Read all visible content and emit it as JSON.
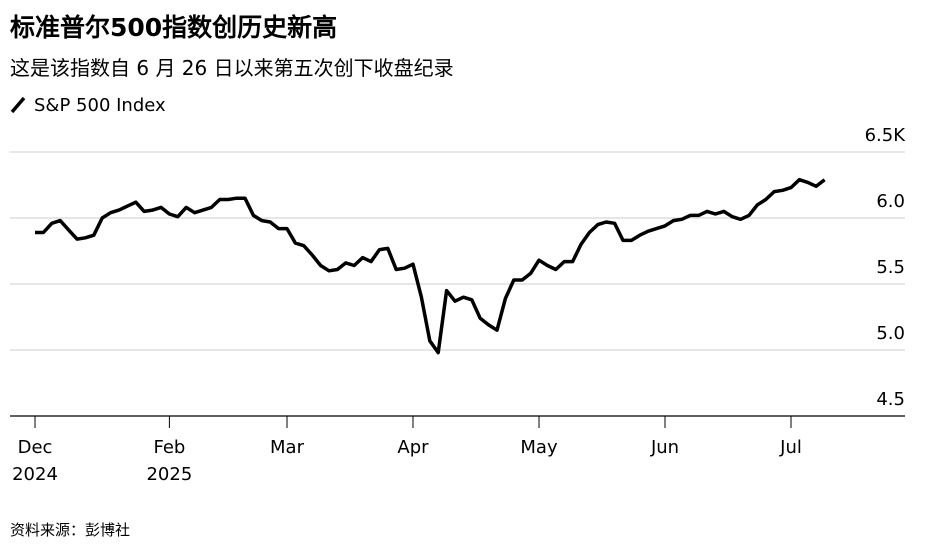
{
  "chart_data": {
    "type": "line",
    "title": "标准普尔500指数创历史新高",
    "subtitle": "这是该指数自 6 月 26 日以来第五次创下收盘纪录",
    "source": "资料来源：彭博社",
    "categories": [
      "Dec",
      null,
      null,
      null,
      null,
      null,
      null,
      null,
      null,
      null,
      null,
      null,
      null,
      null,
      null,
      null,
      "Feb",
      null,
      null,
      null,
      null,
      null,
      null,
      null,
      null,
      null,
      null,
      null,
      null,
      null,
      "Mar",
      null,
      null,
      null,
      null,
      null,
      null,
      null,
      null,
      null,
      null,
      null,
      null,
      null,
      null,
      "Apr",
      null,
      null,
      null,
      null,
      null,
      null,
      null,
      null,
      null,
      null,
      null,
      null,
      null,
      null,
      "May",
      null,
      null,
      null,
      null,
      null,
      null,
      null,
      null,
      null,
      null,
      null,
      null,
      null,
      null,
      "Jun",
      null,
      null,
      null,
      null,
      null,
      null,
      null,
      null,
      null,
      null,
      null,
      null,
      null,
      null,
      "Jul",
      null,
      null,
      null,
      null
    ],
    "category_years": [
      "2024",
      null,
      null,
      null,
      null,
      null,
      null,
      null,
      null,
      null,
      null,
      null,
      null,
      null,
      null,
      null,
      "2025",
      null,
      null,
      null,
      null,
      null,
      null,
      null,
      null,
      null,
      null,
      null,
      null,
      null,
      null,
      null,
      null,
      null,
      null,
      null,
      null,
      null,
      null,
      null,
      null,
      null,
      null,
      null,
      null,
      null,
      null,
      null,
      null,
      null,
      null,
      null,
      null,
      null,
      null,
      null,
      null,
      null,
      null,
      null,
      null,
      null,
      null,
      null,
      null,
      null,
      null,
      null,
      null,
      null,
      null,
      null,
      null,
      null,
      null,
      null,
      null,
      null,
      null,
      null,
      null,
      null,
      null,
      null,
      null,
      null,
      null,
      null,
      null,
      null,
      null,
      null,
      null,
      null,
      null
    ],
    "series": [
      {
        "name": "S&P 500 Index",
        "color": "#000000",
        "values": [
          5.89,
          5.89,
          5.96,
          5.98,
          5.91,
          5.84,
          5.85,
          5.87,
          6.0,
          6.04,
          6.06,
          6.09,
          6.12,
          6.05,
          6.06,
          6.08,
          6.03,
          6.01,
          6.08,
          6.04,
          6.06,
          6.08,
          6.14,
          6.14,
          6.15,
          6.15,
          6.02,
          5.98,
          5.97,
          5.92,
          5.92,
          5.81,
          5.79,
          5.72,
          5.64,
          5.6,
          5.61,
          5.66,
          5.64,
          5.7,
          5.67,
          5.76,
          5.77,
          5.61,
          5.62,
          5.65,
          5.4,
          5.07,
          4.98,
          5.45,
          5.37,
          5.4,
          5.38,
          5.24,
          5.19,
          5.15,
          5.39,
          5.53,
          5.53,
          5.58,
          5.68,
          5.64,
          5.61,
          5.67,
          5.67,
          5.8,
          5.89,
          5.95,
          5.97,
          5.96,
          5.83,
          5.83,
          5.87,
          5.9,
          5.92,
          5.94,
          5.98,
          5.99,
          6.02,
          6.02,
          6.05,
          6.03,
          6.05,
          6.01,
          5.99,
          6.02,
          6.1,
          6.14,
          6.2,
          6.21,
          6.23,
          6.29,
          6.27,
          6.24,
          6.29
        ]
      }
    ],
    "ylim": [
      4.5,
      6.5
    ],
    "yticks": [
      4.5,
      {
        "value": 5.0,
        "label": "5.0"
      },
      5.5,
      {
        "value": 6.0,
        "label": "6.0"
      },
      {
        "value": 6.5,
        "label": "6.5K"
      }
    ],
    "grid": true
  }
}
